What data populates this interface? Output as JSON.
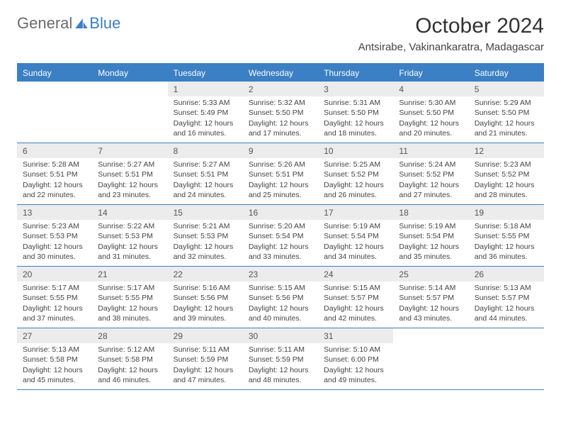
{
  "logo": {
    "text1": "General",
    "text2": "Blue"
  },
  "title": "October 2024",
  "location": "Antsirabe, Vakinankaratra, Madagascar",
  "colors": {
    "accent": "#3b7fc4",
    "header_text": "#ffffff",
    "daynum_bg": "#ececec"
  },
  "day_headers": [
    "Sunday",
    "Monday",
    "Tuesday",
    "Wednesday",
    "Thursday",
    "Friday",
    "Saturday"
  ],
  "layout": {
    "columns": 7,
    "rows": 5,
    "leading_blanks": 2
  },
  "days": [
    {
      "n": "1",
      "sr": "5:33 AM",
      "ss": "5:49 PM",
      "dh": "12",
      "dm": "16"
    },
    {
      "n": "2",
      "sr": "5:32 AM",
      "ss": "5:50 PM",
      "dh": "12",
      "dm": "17"
    },
    {
      "n": "3",
      "sr": "5:31 AM",
      "ss": "5:50 PM",
      "dh": "12",
      "dm": "18"
    },
    {
      "n": "4",
      "sr": "5:30 AM",
      "ss": "5:50 PM",
      "dh": "12",
      "dm": "20"
    },
    {
      "n": "5",
      "sr": "5:29 AM",
      "ss": "5:50 PM",
      "dh": "12",
      "dm": "21"
    },
    {
      "n": "6",
      "sr": "5:28 AM",
      "ss": "5:51 PM",
      "dh": "12",
      "dm": "22"
    },
    {
      "n": "7",
      "sr": "5:27 AM",
      "ss": "5:51 PM",
      "dh": "12",
      "dm": "23"
    },
    {
      "n": "8",
      "sr": "5:27 AM",
      "ss": "5:51 PM",
      "dh": "12",
      "dm": "24"
    },
    {
      "n": "9",
      "sr": "5:26 AM",
      "ss": "5:51 PM",
      "dh": "12",
      "dm": "25"
    },
    {
      "n": "10",
      "sr": "5:25 AM",
      "ss": "5:52 PM",
      "dh": "12",
      "dm": "26"
    },
    {
      "n": "11",
      "sr": "5:24 AM",
      "ss": "5:52 PM",
      "dh": "12",
      "dm": "27"
    },
    {
      "n": "12",
      "sr": "5:23 AM",
      "ss": "5:52 PM",
      "dh": "12",
      "dm": "28"
    },
    {
      "n": "13",
      "sr": "5:23 AM",
      "ss": "5:53 PM",
      "dh": "12",
      "dm": "30"
    },
    {
      "n": "14",
      "sr": "5:22 AM",
      "ss": "5:53 PM",
      "dh": "12",
      "dm": "31"
    },
    {
      "n": "15",
      "sr": "5:21 AM",
      "ss": "5:53 PM",
      "dh": "12",
      "dm": "32"
    },
    {
      "n": "16",
      "sr": "5:20 AM",
      "ss": "5:54 PM",
      "dh": "12",
      "dm": "33"
    },
    {
      "n": "17",
      "sr": "5:19 AM",
      "ss": "5:54 PM",
      "dh": "12",
      "dm": "34"
    },
    {
      "n": "18",
      "sr": "5:19 AM",
      "ss": "5:54 PM",
      "dh": "12",
      "dm": "35"
    },
    {
      "n": "19",
      "sr": "5:18 AM",
      "ss": "5:55 PM",
      "dh": "12",
      "dm": "36"
    },
    {
      "n": "20",
      "sr": "5:17 AM",
      "ss": "5:55 PM",
      "dh": "12",
      "dm": "37"
    },
    {
      "n": "21",
      "sr": "5:17 AM",
      "ss": "5:55 PM",
      "dh": "12",
      "dm": "38"
    },
    {
      "n": "22",
      "sr": "5:16 AM",
      "ss": "5:56 PM",
      "dh": "12",
      "dm": "39"
    },
    {
      "n": "23",
      "sr": "5:15 AM",
      "ss": "5:56 PM",
      "dh": "12",
      "dm": "40"
    },
    {
      "n": "24",
      "sr": "5:15 AM",
      "ss": "5:57 PM",
      "dh": "12",
      "dm": "42"
    },
    {
      "n": "25",
      "sr": "5:14 AM",
      "ss": "5:57 PM",
      "dh": "12",
      "dm": "43"
    },
    {
      "n": "26",
      "sr": "5:13 AM",
      "ss": "5:57 PM",
      "dh": "12",
      "dm": "44"
    },
    {
      "n": "27",
      "sr": "5:13 AM",
      "ss": "5:58 PM",
      "dh": "12",
      "dm": "45"
    },
    {
      "n": "28",
      "sr": "5:12 AM",
      "ss": "5:58 PM",
      "dh": "12",
      "dm": "46"
    },
    {
      "n": "29",
      "sr": "5:11 AM",
      "ss": "5:59 PM",
      "dh": "12",
      "dm": "47"
    },
    {
      "n": "30",
      "sr": "5:11 AM",
      "ss": "5:59 PM",
      "dh": "12",
      "dm": "48"
    },
    {
      "n": "31",
      "sr": "5:10 AM",
      "ss": "6:00 PM",
      "dh": "12",
      "dm": "49"
    }
  ],
  "labels": {
    "sunrise": "Sunrise:",
    "sunset": "Sunset:",
    "daylight": "Daylight:",
    "hours": "hours",
    "and": "and",
    "minutes": "minutes."
  }
}
